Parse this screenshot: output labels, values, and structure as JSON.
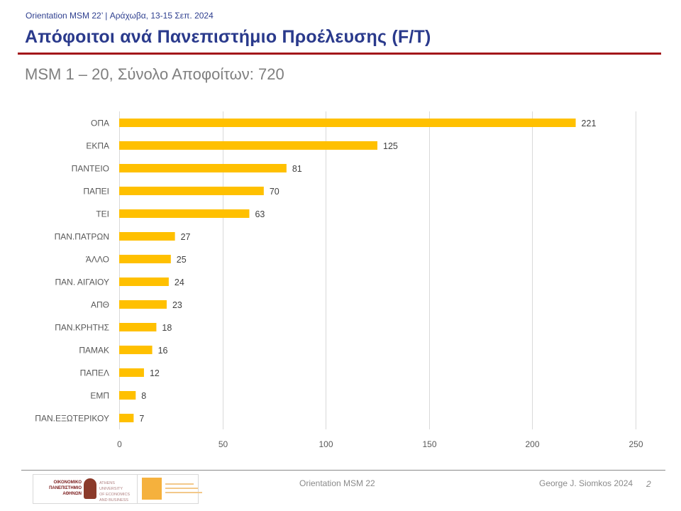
{
  "header": {
    "event_line": "Orientation MSM 22’ | Αράχωβα, 13-15 Σεπ. 2024",
    "title": "Απόφοιτοι ανά Πανεπιστήμιο Προέλευσης (F/T)",
    "subtitle": "MSM 1 – 20, Σύνολο Αποφοίτων: 720"
  },
  "colors": {
    "title": "#2a3a8c",
    "rule": "#a3161a",
    "bar": "#ffc000",
    "gridline": "#d9d9d9"
  },
  "chart_data": {
    "type": "bar",
    "orientation": "horizontal",
    "title": "",
    "xlabel": "",
    "ylabel": "",
    "categories": [
      "ΟΠΑ",
      "ΕΚΠΑ",
      "ΠΑΝΤΕΙΟ",
      "ΠΑΠΕΙ",
      "ΤΕΙ",
      "ΠΑΝ.ΠΑΤΡΩΝ",
      "ΆΛΛΟ",
      "ΠΑΝ. ΑΙΓΑΙΟΥ",
      "ΑΠΘ",
      "ΠΑΝ.ΚΡΗΤΗΣ",
      "ΠΑΜΑΚ",
      "ΠΑΠΕΛ",
      "ΕΜΠ",
      "ΠΑΝ.ΕΞΩΤΕΡΙΚΟΥ"
    ],
    "values": [
      221,
      125,
      81,
      70,
      63,
      27,
      25,
      24,
      23,
      18,
      16,
      12,
      8,
      7
    ],
    "xlim": [
      0,
      250
    ],
    "xticks": [
      0,
      50,
      100,
      150,
      200,
      250
    ],
    "grid": true,
    "data_labels": true,
    "legend": "none"
  },
  "footer": {
    "center": "Orientation MSM 22",
    "author": "George J. Siomkos 2024",
    "page_number": "2",
    "logo_left_greek": [
      "ΟΙΚΟΝΟΜΙΚΟ",
      "ΠΑΝΕΠΙΣΤΗΜΙΟ",
      "ΑΘΗΝΩΝ"
    ],
    "logo_left_english": [
      "ATHENS UNIVERSITY",
      "OF ECONOMICS",
      "AND BUSINESS"
    ]
  }
}
